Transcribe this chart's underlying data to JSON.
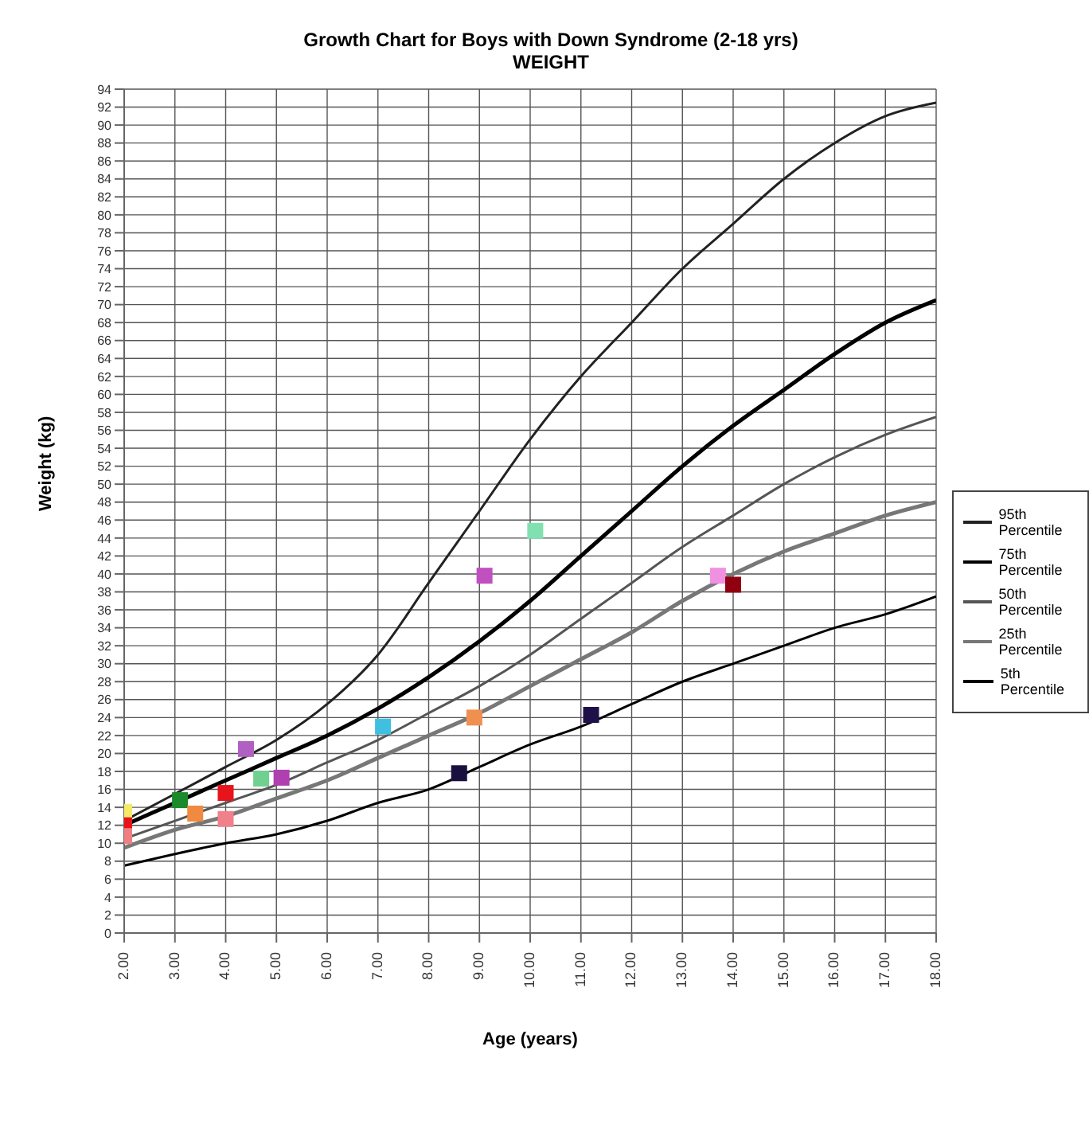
{
  "chart_data": {
    "type": "line",
    "title": "Growth Chart for Boys with Down Syndrome (2-18 yrs)",
    "subtitle": "WEIGHT",
    "xlabel": "Age (years)",
    "ylabel": "Weight (kg)",
    "xlim": [
      2,
      18
    ],
    "xticks": [
      {
        "value": 2,
        "label": "2.00"
      },
      {
        "value": 3,
        "label": "3.00"
      },
      {
        "value": 4,
        "label": "4.00"
      },
      {
        "value": 5,
        "label": "5.00"
      },
      {
        "value": 6,
        "label": "6.00"
      },
      {
        "value": 7,
        "label": "7.00"
      },
      {
        "value": 8,
        "label": "8.00"
      },
      {
        "value": 9,
        "label": "9.00"
      },
      {
        "value": 10,
        "label": "10.00"
      },
      {
        "value": 11,
        "label": "11.00"
      },
      {
        "value": 12,
        "label": "12.00"
      },
      {
        "value": 13,
        "label": "13.00"
      },
      {
        "value": 14,
        "label": "14.00"
      },
      {
        "value": 15,
        "label": "15.00"
      },
      {
        "value": 16,
        "label": "16.00"
      },
      {
        "value": 17,
        "label": "17.00"
      },
      {
        "value": 18,
        "label": "18.00"
      }
    ],
    "ylim": [
      0,
      94
    ],
    "yticks": [
      0,
      2,
      4,
      6,
      8,
      10,
      12,
      14,
      16,
      18,
      20,
      22,
      24,
      26,
      28,
      30,
      32,
      34,
      36,
      38,
      40,
      42,
      44,
      46,
      48,
      50,
      52,
      54,
      56,
      58,
      60,
      62,
      64,
      66,
      68,
      70,
      72,
      74,
      76,
      78,
      80,
      82,
      84,
      86,
      88,
      90,
      92,
      94
    ],
    "x": [
      2,
      3,
      4,
      5,
      6,
      7,
      8,
      9,
      10,
      11,
      12,
      13,
      14,
      15,
      16,
      17,
      18
    ],
    "grid": true,
    "legend": "right",
    "marker": "none",
    "line_style": "solid",
    "series": [
      {
        "name": "95th Percentile",
        "color": "#222222",
        "values": [
          12.5,
          15.5,
          18.5,
          21.5,
          25.5,
          31,
          39,
          47,
          55,
          62,
          68,
          74,
          79,
          84,
          88,
          91,
          92.5
        ]
      },
      {
        "name": "75th Percentile",
        "color": "#000000",
        "values": [
          12,
          14.5,
          17,
          19.5,
          22,
          25,
          28.5,
          32.5,
          37,
          42,
          47,
          52,
          56.5,
          60.5,
          64.5,
          68,
          70.5
        ]
      },
      {
        "name": "50th Percentile",
        "color": "#555555",
        "values": [
          10.5,
          12.5,
          14.5,
          16.5,
          19,
          21.5,
          24.5,
          27.5,
          31,
          35,
          39,
          43,
          46.5,
          50,
          53,
          55.5,
          57.5
        ]
      },
      {
        "name": "25th Percentile",
        "color": "#777777",
        "values": [
          9.5,
          11.5,
          13,
          15,
          17,
          19.5,
          22,
          24.5,
          27.5,
          30.5,
          33.5,
          37,
          40,
          42.5,
          44.5,
          46.5,
          48
        ]
      },
      {
        "name": "5th Percentile",
        "color": "#000000",
        "values": [
          7.5,
          8.8,
          10,
          11,
          12.5,
          14.5,
          16,
          18.5,
          21,
          23,
          25.5,
          28,
          30,
          32,
          34,
          35.5,
          37.5
        ]
      },
      {
        "type": "scatter",
        "marker": "square",
        "x": [
          2,
          2,
          2,
          3.1,
          3.4,
          4,
          4,
          4.4,
          4.7,
          5.1,
          7.1,
          8.9,
          8.6,
          11.2,
          9.1,
          10.1,
          13.7,
          14
        ],
        "values": [
          13.5,
          12,
          10.8,
          14.8,
          13.3,
          15.6,
          12.7,
          20.5,
          17.2,
          17.3,
          23,
          24,
          17.8,
          24.3,
          39.8,
          44.8,
          39.8,
          38.8
        ],
        "colors": [
          "#f5e96a",
          "#e8141b",
          "#f08080",
          "#1a8a2a",
          "#f08a40",
          "#e8141b",
          "#f0808a",
          "#b060c0",
          "#70d090",
          "#b040b0",
          "#40c0e0",
          "#f09050",
          "#1a1040",
          "#20104a",
          "#c050c0",
          "#80e0b0",
          "#f090e0",
          "#900010"
        ]
      }
    ]
  }
}
